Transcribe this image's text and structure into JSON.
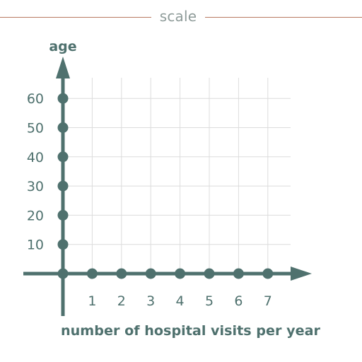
{
  "header": {
    "label": "scale",
    "rule_color": "#b87a62",
    "label_color": "#8f9c9a"
  },
  "colors": {
    "axis": "#4f716e",
    "grid": "#dcdcdc"
  },
  "chart_data": {
    "type": "scatter",
    "ylabel": "age",
    "xlabel": "number of hospital visits per year",
    "x_ticks": [
      1,
      2,
      3,
      4,
      5,
      6,
      7
    ],
    "x_tick_labels": [
      "1",
      "2",
      "3",
      "4",
      "5",
      "6",
      "7"
    ],
    "y_ticks": [
      10,
      20,
      30,
      40,
      50,
      60
    ],
    "y_tick_labels": [
      "10",
      "20",
      "30",
      "40",
      "50",
      "60"
    ],
    "xlim": [
      0,
      8
    ],
    "ylim": [
      0,
      70
    ],
    "grid": true,
    "axis_arrows": true
  }
}
